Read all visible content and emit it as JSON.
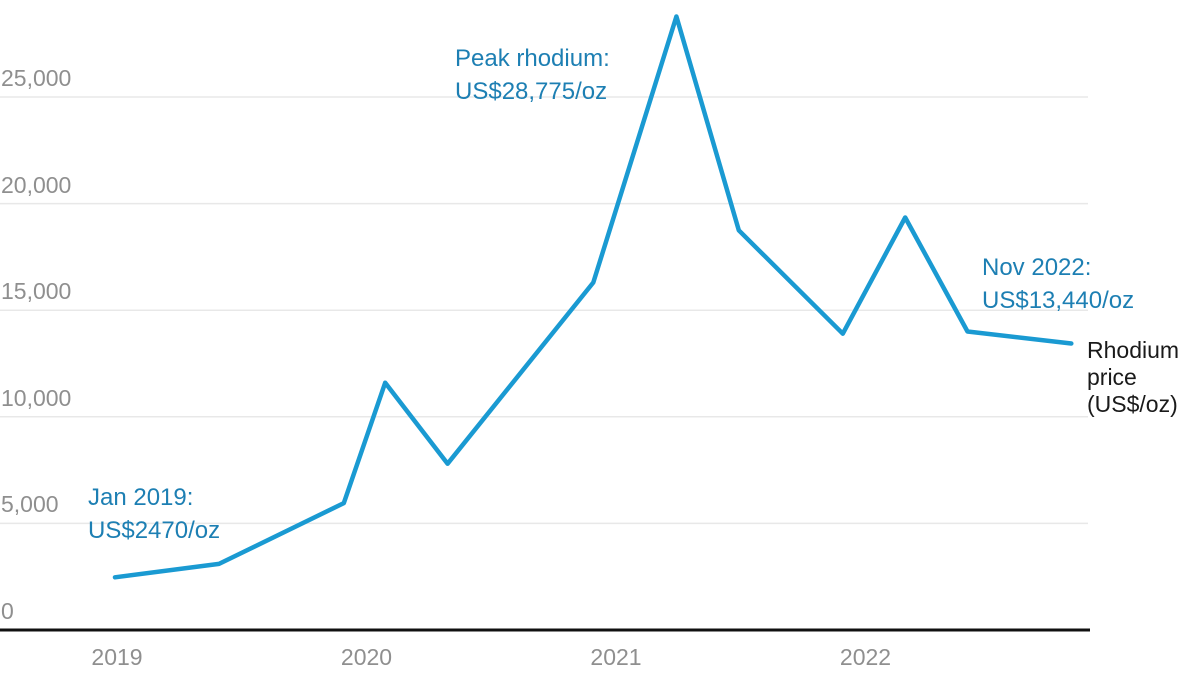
{
  "chart_data": {
    "type": "line",
    "title": "",
    "xlabel": "",
    "ylabel": "Rhodium price (US$/oz)",
    "grid": true,
    "legend_position": "right of line end",
    "x_ticks": [
      2019,
      2020,
      2021,
      2022
    ],
    "x_tick_labels": [
      "2019",
      "2020",
      "2021",
      "2022"
    ],
    "y_ticks": [
      0,
      5000,
      10000,
      15000,
      20000,
      25000
    ],
    "y_tick_labels": [
      "0",
      "5,000",
      "10,000",
      "15,000",
      "20,000",
      "25,000"
    ],
    "ylim": [
      0,
      29500
    ],
    "xlim": [
      2018.95,
      2022.95
    ],
    "series": [
      {
        "name": "Rhodium price (US$/oz)",
        "points": [
          {
            "date": "Jan 2019",
            "x": 2019.0,
            "value": 2470
          },
          {
            "date": "Jun 2019",
            "x": 2019.417,
            "value": 3100
          },
          {
            "date": "Dec 2019",
            "x": 2019.917,
            "value": 5950
          },
          {
            "date": "Feb 2020",
            "x": 2020.083,
            "value": 11600
          },
          {
            "date": "May 2020",
            "x": 2020.333,
            "value": 7800
          },
          {
            "date": "Dec 2020",
            "x": 2020.917,
            "value": 16300
          },
          {
            "date": "Apr 2021",
            "x": 2021.25,
            "value": 28775
          },
          {
            "date": "Jul 2021",
            "x": 2021.5,
            "value": 18750
          },
          {
            "date": "Dec 2021",
            "x": 2021.917,
            "value": 13900
          },
          {
            "date": "Mar 2022",
            "x": 2022.167,
            "value": 19350
          },
          {
            "date": "Jun 2022",
            "x": 2022.417,
            "value": 14000
          },
          {
            "date": "Nov 2022",
            "x": 2022.833,
            "value": 13440
          }
        ]
      }
    ]
  },
  "annotations": {
    "start": {
      "line1": "Jan 2019:",
      "line2": "US$2470/oz"
    },
    "peak": {
      "line1": "Peak rhodium:",
      "line2": "US$28,775/oz"
    },
    "end": {
      "line1": "Nov 2022:",
      "line2": "US$13,440/oz"
    }
  },
  "series_label": {
    "line1": "Rhodium",
    "line2": "price",
    "line3": "(US$/oz)"
  },
  "colors": {
    "line": "#1a9ad2",
    "annotation_text": "#1d7fb3",
    "tick_label": "#8f8f8f",
    "gridline": "#e8e8e8",
    "axis_line": "#111111",
    "series_label_text": "#1a1a1a",
    "background": "#ffffff"
  }
}
